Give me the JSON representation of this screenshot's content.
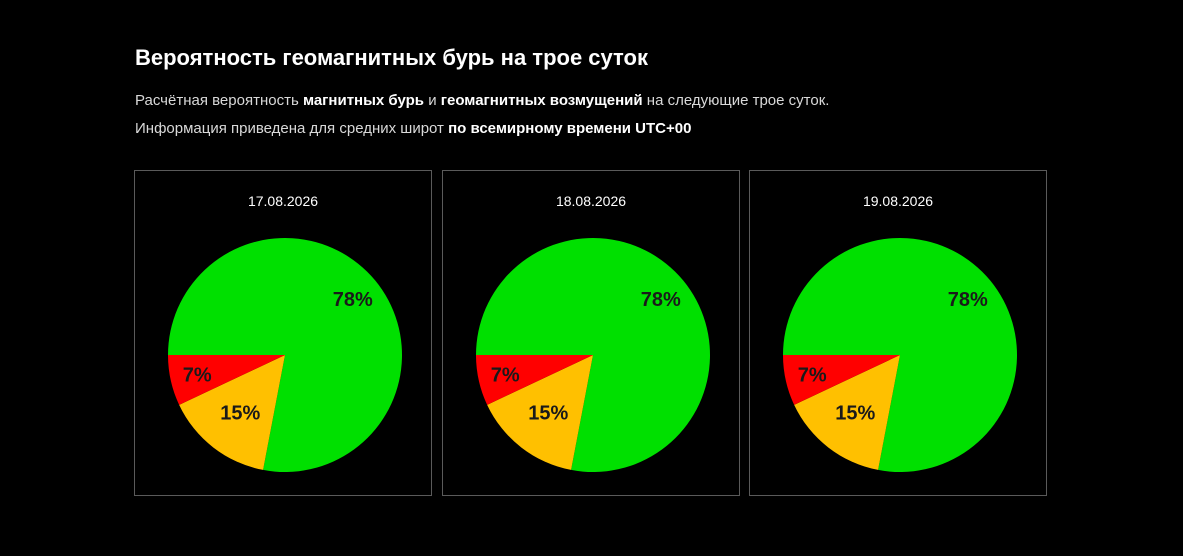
{
  "header": {
    "title": "Вероятность геомагнитных бурь на трое суток",
    "line1": {
      "t1": "Расчётная вероятность ",
      "b1": "магнитных бурь",
      "t2": " и ",
      "b2": "геомагнитных возмущений",
      "t3": " на следующие трое суток."
    },
    "line2": {
      "t1": "Информация приведена для средних широт ",
      "b1": "по всемирному времени UTC+00"
    }
  },
  "chart_data": [
    {
      "type": "pie",
      "title": "17.08.2026",
      "slices": [
        {
          "value": 78,
          "label": "78%",
          "color": "#00e000"
        },
        {
          "value": 15,
          "label": "15%",
          "color": "#ffc000"
        },
        {
          "value": 7,
          "label": "7%",
          "color": "#ff0000"
        }
      ]
    },
    {
      "type": "pie",
      "title": "18.08.2026",
      "slices": [
        {
          "value": 78,
          "label": "78%",
          "color": "#00e000"
        },
        {
          "value": 15,
          "label": "15%",
          "color": "#ffc000"
        },
        {
          "value": 7,
          "label": "7%",
          "color": "#ff0000"
        }
      ]
    },
    {
      "type": "pie",
      "title": "19.08.2026",
      "slices": [
        {
          "value": 78,
          "label": "78%",
          "color": "#00e000"
        },
        {
          "value": 15,
          "label": "15%",
          "color": "#ffc000"
        },
        {
          "value": 7,
          "label": "7%",
          "color": "#ff0000"
        }
      ]
    }
  ]
}
